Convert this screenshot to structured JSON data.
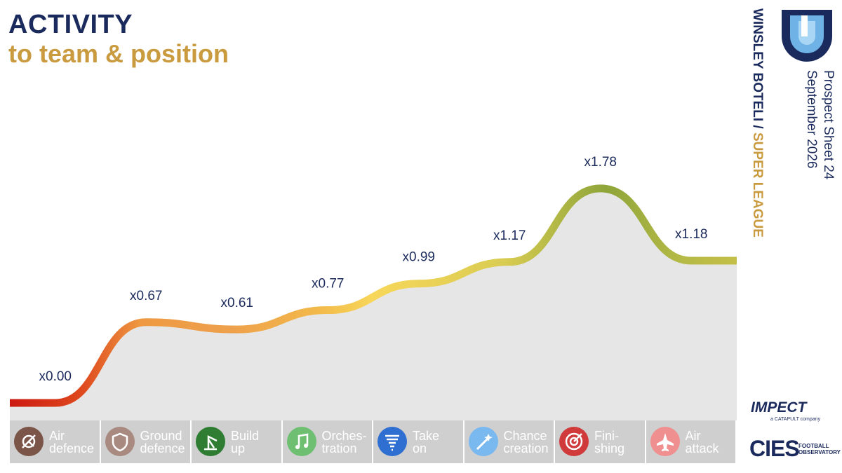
{
  "header": {
    "title": "ACTIVITY",
    "subtitle": "to team & position"
  },
  "sidebar": {
    "player": "WINSLEY BOTELI /",
    "league": "SUPER LEAGUE",
    "sheet": "Prospect Sheet 24",
    "date": "September 2026"
  },
  "brand": {
    "impect": "IMPECT",
    "impect_sub": "a CATAPULT company",
    "cies": "CIES",
    "cies_sub_line1": "FOOTBALL",
    "cies_sub_line2": "OBSERVATORY"
  },
  "colors": {
    "navy": "#1b2a5c",
    "gold": "#c99a3e",
    "area": "#e6e6e6",
    "panel": "#cfcfcf"
  },
  "chart_data": {
    "type": "area",
    "title": "ACTIVITY",
    "subtitle": "to team & position",
    "categories": [
      "Air defence",
      "Ground defence",
      "Build up",
      "Orches-tration",
      "Take on",
      "Chance creation",
      "Fini-shing",
      "Air attack"
    ],
    "values": [
      0.0,
      0.67,
      0.61,
      0.77,
      0.99,
      1.17,
      1.78,
      1.18
    ],
    "labels": [
      "x0.00",
      "x0.67",
      "x0.61",
      "x0.77",
      "x0.99",
      "x1.17",
      "x1.78",
      "x1.18"
    ],
    "ylim": [
      0,
      2.2
    ],
    "grid": false,
    "categories_display": [
      {
        "line1": "Air",
        "line2": "defence",
        "icon": "satellite-dish-icon",
        "color": "#7a5548"
      },
      {
        "line1": "Ground",
        "line2": "defence",
        "icon": "shield-icon",
        "color": "#a88a80"
      },
      {
        "line1": "Build",
        "line2": "up",
        "icon": "crane-icon",
        "color": "#2e7d32"
      },
      {
        "line1": "Orches-",
        "line2": "tration",
        "icon": "music-note-icon",
        "color": "#6fbf73"
      },
      {
        "line1": "Take",
        "line2": "on",
        "icon": "tornado-icon",
        "color": "#2f6fd1"
      },
      {
        "line1": "Chance",
        "line2": "creation",
        "icon": "magic-wand-icon",
        "color": "#7ab8f0"
      },
      {
        "line1": "Fini-",
        "line2": "shing",
        "icon": "target-icon",
        "color": "#d03a3a"
      },
      {
        "line1": "Air",
        "line2": "attack",
        "icon": "jet-icon",
        "color": "#ef8f8f"
      }
    ]
  }
}
